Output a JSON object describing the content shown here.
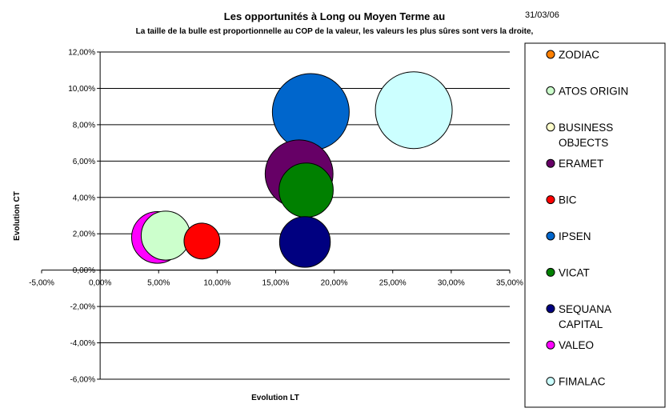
{
  "header": {
    "title": "Les opportunités à Long ou Moyen Terme au",
    "date": "31/03/06",
    "subtitle": "La taille de la bulle est proportionnelle au COP de la valeur, les valeurs les plus sûres sont vers la droite,"
  },
  "chart_data": {
    "type": "scatter",
    "subtype": "bubble",
    "xlabel": "Evolution LT",
    "ylabel": "Evolution CT",
    "xlim": [
      -5,
      35
    ],
    "ylim": [
      -6,
      12
    ],
    "x_ticks": [
      "-5,00%",
      "0,00%",
      "5,00%",
      "10,00%",
      "15,00%",
      "20,00%",
      "25,00%",
      "30,00%",
      "35,00%"
    ],
    "y_ticks": [
      "12,00%",
      "10,00%",
      "8,00%",
      "6,00%",
      "4,00%",
      "2,00%",
      "0,00%",
      "-2,00%",
      "-4,00%",
      "-6,00%"
    ],
    "grid": "horizontal",
    "legend_position": "right",
    "series": [
      {
        "name": "ZODIAC",
        "color": "#FF8000",
        "x": null,
        "y": null,
        "size": null
      },
      {
        "name": "ATOS ORIGIN",
        "color": "#CCFFCC",
        "x": 5.6,
        "y": 1.9,
        "size": 1.3
      },
      {
        "name": "BUSINESS OBJECTS",
        "color": "#FFFFCC",
        "x": null,
        "y": null,
        "size": null
      },
      {
        "name": "ERAMET",
        "color": "#660066",
        "x": 17,
        "y": 5.3,
        "size": 2.5
      },
      {
        "name": "BIC",
        "color": "#FF0000",
        "x": 8.7,
        "y": 1.6,
        "size": 0.7
      },
      {
        "name": "IPSEN",
        "color": "#0066CC",
        "x": 18,
        "y": 8.7,
        "size": 3.2
      },
      {
        "name": "VICAT",
        "color": "#008000",
        "x": 17.6,
        "y": 4.4,
        "size": 1.6
      },
      {
        "name": "SEQUANA CAPITAL",
        "color": "#000080",
        "x": 17.5,
        "y": 1.55,
        "size": 1.4
      },
      {
        "name": "VALEO",
        "color": "#FF00FF",
        "x": 4.9,
        "y": 1.8,
        "size": 1.45
      },
      {
        "name": "FIMALAC",
        "color": "#CCFFFF",
        "x": 26.8,
        "y": 8.8,
        "size": 3.2
      }
    ]
  },
  "legend": {
    "items": [
      {
        "line1": "ZODIAC",
        "line2": ""
      },
      {
        "line1": "ATOS ORIGIN",
        "line2": ""
      },
      {
        "line1": "BUSINESS",
        "line2": "OBJECTS"
      },
      {
        "line1": "ERAMET",
        "line2": ""
      },
      {
        "line1": "BIC",
        "line2": ""
      },
      {
        "line1": "IPSEN",
        "line2": ""
      },
      {
        "line1": "VICAT",
        "line2": ""
      },
      {
        "line1": "SEQUANA",
        "line2": "CAPITAL"
      },
      {
        "line1": "VALEO",
        "line2": ""
      },
      {
        "line1": "FIMALAC",
        "line2": ""
      }
    ]
  }
}
